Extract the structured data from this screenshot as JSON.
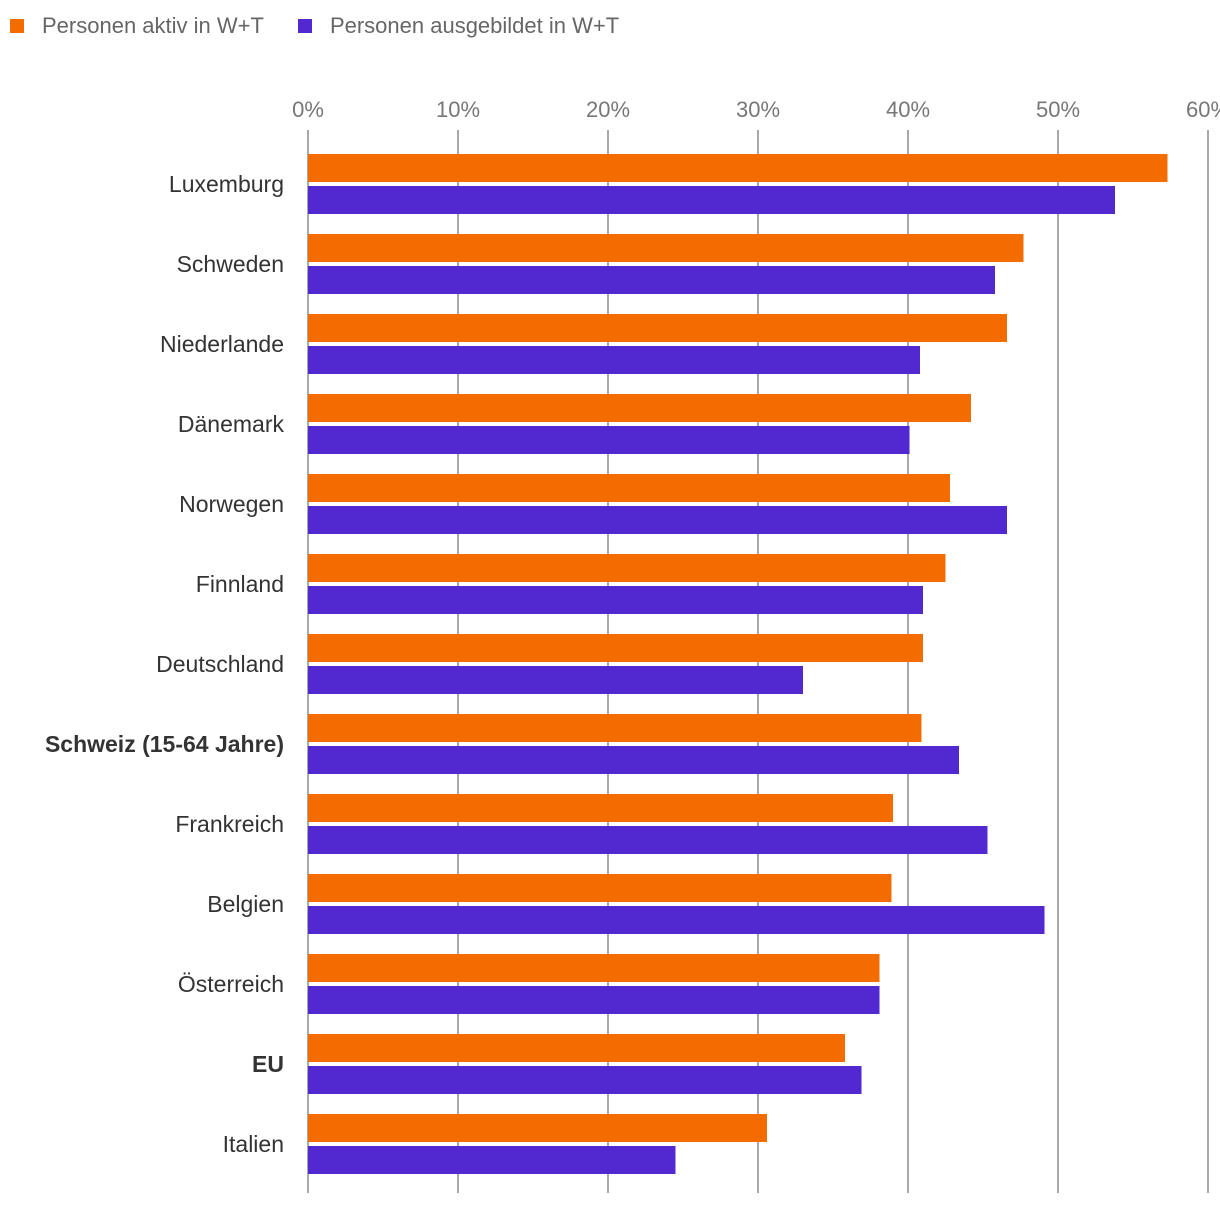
{
  "chart_data": {
    "type": "bar",
    "orientation": "horizontal",
    "title": "",
    "xlabel": "",
    "ylabel": "",
    "xlim": [
      0,
      60
    ],
    "ticks": [
      "0%",
      "10%",
      "20%",
      "30%",
      "40%",
      "50%",
      "60%"
    ],
    "tick_values": [
      0,
      10,
      20,
      30,
      40,
      50,
      60
    ],
    "grid": "vertical",
    "legend_position": "top-left",
    "categories": [
      "Luxemburg",
      "Schweden",
      "Niederlande",
      "Dänemark",
      "Norwegen",
      "Finnland",
      "Deutschland",
      "Schweiz (15-64 Jahre)",
      "Frankreich",
      "Belgien",
      "Österreich",
      "EU",
      "Italien"
    ],
    "bold_categories": [
      "Schweiz (15-64 Jahre)",
      "EU"
    ],
    "series": [
      {
        "name": "Personen aktiv in W+T",
        "color": "#f26c00",
        "values": [
          57.3,
          47.7,
          46.6,
          44.2,
          42.8,
          42.5,
          41.0,
          40.9,
          39.0,
          38.9,
          38.1,
          35.8,
          30.6
        ]
      },
      {
        "name": "Personen ausgebildet in W+T",
        "color": "#5228d0",
        "values": [
          53.8,
          45.8,
          40.8,
          40.1,
          46.6,
          41.0,
          33.0,
          43.4,
          45.3,
          49.1,
          38.1,
          36.9,
          24.5
        ]
      }
    ]
  }
}
